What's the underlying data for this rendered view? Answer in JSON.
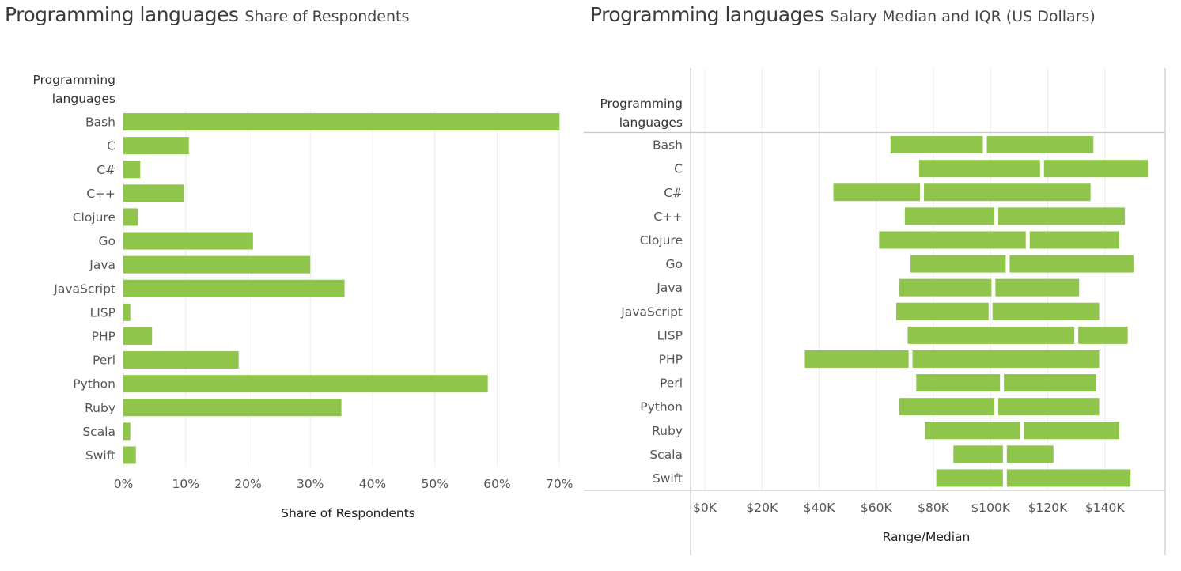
{
  "panels": {
    "left": {
      "title": "Programming languages",
      "subtitle": "Share of Respondents"
    },
    "right": {
      "title": "Programming languages",
      "subtitle": "Salary Median and IQR (US Dollars)"
    }
  },
  "bar_color": "#8fc54a",
  "chart_data": [
    {
      "type": "bar",
      "orientation": "horizontal",
      "row_header": "Programming languages",
      "xlabel": "Share of Respondents",
      "categories": [
        "Bash",
        "C",
        "C#",
        "C++",
        "Clojure",
        "Go",
        "Java",
        "JavaScript",
        "LISP",
        "PHP",
        "Perl",
        "Python",
        "Ruby",
        "Scala",
        "Swift"
      ],
      "values": [
        70,
        10.5,
        2.7,
        9.7,
        2.3,
        20.8,
        30,
        35.5,
        1.1,
        4.6,
        18.5,
        58.5,
        35,
        1.1,
        2.0
      ],
      "value_unit": "%",
      "xlim": [
        0,
        72
      ],
      "xticks": [
        0,
        10,
        20,
        30,
        40,
        50,
        60,
        70
      ],
      "xtick_labels": [
        "0%",
        "10%",
        "20%",
        "30%",
        "40%",
        "50%",
        "60%",
        "70%"
      ],
      "grid": "vertical"
    },
    {
      "type": "bar",
      "orientation": "horizontal-range",
      "row_header": "Programming languages",
      "xlabel": "Range/Median",
      "categories": [
        "Bash",
        "C",
        "C#",
        "C++",
        "Clojure",
        "Go",
        "Java",
        "JavaScript",
        "LISP",
        "PHP",
        "Perl",
        "Python",
        "Ruby",
        "Scala",
        "Swift"
      ],
      "series": [
        {
          "name": "q1",
          "values": [
            65000,
            75000,
            45000,
            70000,
            61000,
            72000,
            68000,
            67000,
            71000,
            35000,
            74000,
            68000,
            77000,
            87000,
            81000
          ]
        },
        {
          "name": "median",
          "values": [
            98000,
            118000,
            76000,
            102000,
            113000,
            106000,
            101000,
            100000,
            130000,
            72000,
            104000,
            102000,
            111000,
            105000,
            105000
          ]
        },
        {
          "name": "q3",
          "values": [
            136000,
            155000,
            135000,
            147000,
            145000,
            150000,
            131000,
            138000,
            148000,
            138000,
            137000,
            138000,
            145000,
            122000,
            149000
          ]
        }
      ],
      "xlim": [
        0,
        160000
      ],
      "xticks": [
        0,
        20000,
        40000,
        60000,
        80000,
        100000,
        120000,
        140000
      ],
      "xtick_labels": [
        "$0K",
        "$20K",
        "$40K",
        "$60K",
        "$80K",
        "$100K",
        "$120K",
        "$140K"
      ],
      "grid": "vertical"
    }
  ]
}
